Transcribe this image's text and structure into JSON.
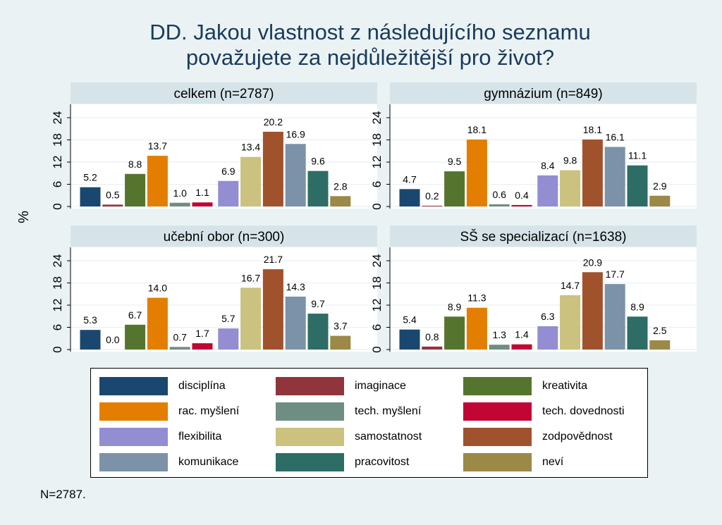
{
  "title_lines": [
    "DD. Jakou vlastnost z následujícího seznamu",
    "považujete za nejdůležitější pro život?"
  ],
  "ylabel": "%",
  "footnote": "N=2787.",
  "chart_data": {
    "type": "bar",
    "ylim": [
      0,
      24
    ],
    "yticks": [
      0,
      6,
      12,
      18,
      24
    ],
    "grid": true,
    "legend_position": "bottom",
    "categories": [
      "disciplína",
      "imaginace",
      "kreativita",
      "rac. myšlení",
      "tech. myšlení",
      "tech. dovednosti",
      "flexibilita",
      "samostatnost",
      "zodpovědnost",
      "komunikace",
      "pracovitost",
      "neví"
    ],
    "colors": [
      "#1a476f",
      "#90353b",
      "#55752f",
      "#e37e00",
      "#6e8e84",
      "#c10534",
      "#938dd2",
      "#cac27e",
      "#a0522d",
      "#7b92a8",
      "#2d6d66",
      "#9c8847"
    ],
    "panels": [
      {
        "title": "celkem (n=2787)",
        "values": [
          5.2,
          0.5,
          8.8,
          13.7,
          1.0,
          1.1,
          6.9,
          13.4,
          20.2,
          16.9,
          9.6,
          2.8
        ]
      },
      {
        "title": "gymnázium (n=849)",
        "values": [
          4.7,
          0.2,
          9.5,
          18.1,
          0.6,
          0.4,
          8.4,
          9.8,
          18.1,
          16.1,
          11.1,
          2.9
        ]
      },
      {
        "title": "učební obor (n=300)",
        "values": [
          5.3,
          0.0,
          6.7,
          14.0,
          0.7,
          1.7,
          5.7,
          16.7,
          21.7,
          14.3,
          9.7,
          3.7
        ]
      },
      {
        "title": "SŠ se specializací (n=1638)",
        "values": [
          5.4,
          0.8,
          8.9,
          11.3,
          1.3,
          1.4,
          6.3,
          14.7,
          20.9,
          17.7,
          8.9,
          2.5
        ]
      }
    ]
  }
}
